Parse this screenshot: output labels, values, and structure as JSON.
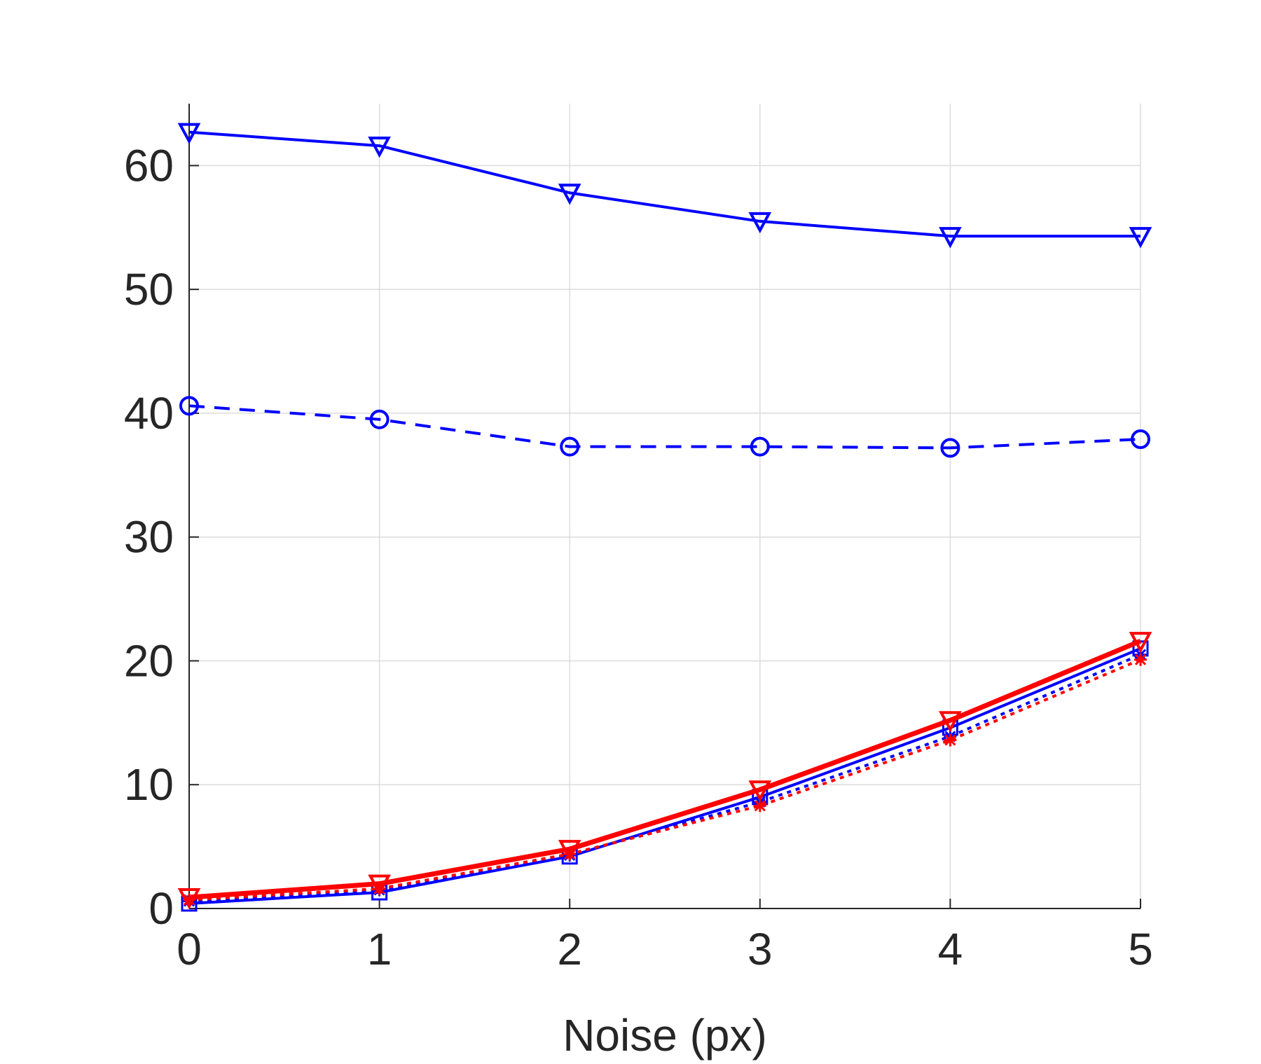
{
  "chart_data": {
    "type": "line",
    "title": "",
    "xlabel": "Noise (px)",
    "ylabel": "",
    "x": [
      0,
      1,
      2,
      3,
      4,
      5
    ],
    "xlim": [
      0,
      5
    ],
    "ylim": [
      0,
      65
    ],
    "xticks": [
      0,
      1,
      2,
      3,
      4,
      5
    ],
    "yticks": [
      0,
      10,
      20,
      30,
      40,
      50,
      60
    ],
    "grid": true,
    "series": [
      {
        "name": "blue-triangle-solid",
        "color": "#0000ff",
        "line": "solid",
        "marker": "triangle-down",
        "values": [
          62.7,
          61.6,
          57.8,
          55.5,
          54.3,
          54.3
        ]
      },
      {
        "name": "blue-circle-dashed",
        "color": "#0000ff",
        "line": "dashed",
        "marker": "circle",
        "values": [
          40.6,
          39.5,
          37.3,
          37.3,
          37.2,
          37.9
        ]
      },
      {
        "name": "blue-square-solid",
        "color": "#0000ff",
        "line": "solid",
        "marker": "square",
        "values": [
          0.4,
          1.3,
          4.2,
          9.0,
          14.6,
          21.0
        ]
      },
      {
        "name": "blue-dotted",
        "color": "#0000ff",
        "line": "dotted",
        "marker": "star",
        "values": [
          0.6,
          1.5,
          4.3,
          8.6,
          13.9,
          20.5
        ]
      },
      {
        "name": "red-dotted",
        "color": "#ff0000",
        "line": "dotted",
        "marker": "star",
        "values": [
          0.7,
          1.6,
          4.4,
          8.3,
          13.6,
          20.1
        ]
      },
      {
        "name": "red-triangle-solid",
        "color": "#ff0000",
        "line": "solid",
        "marker": "triangle-down",
        "values": [
          0.9,
          2.0,
          4.8,
          9.6,
          15.2,
          21.6
        ]
      }
    ]
  }
}
